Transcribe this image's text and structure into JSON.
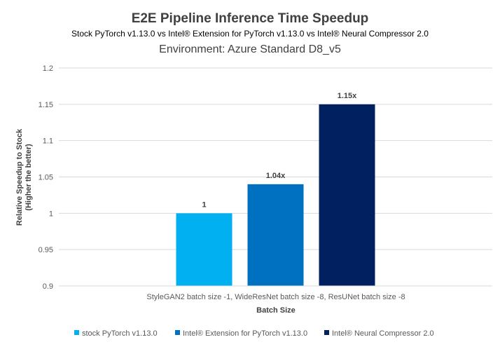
{
  "chart_data": {
    "type": "bar",
    "title": "E2E Pipeline Inference Time Speedup",
    "subtitle": "Stock PyTorch v1.13.0 vs Intel® Extension for PyTorch v1.13.0 vs Intel® Neural Compressor 2.0",
    "subtitle2": "Environment: Azure Standard D8_v5",
    "xlabel": "Batch Size",
    "ylabel_line1": "Relative Speedup to Stock",
    "ylabel_line2": "(Higher the better)",
    "ylim": [
      0.9,
      1.2
    ],
    "yticks": [
      "0.9",
      "0.95",
      "1",
      "1.05",
      "1.1",
      "1.15",
      "1.2"
    ],
    "ytick_values": [
      0.9,
      0.95,
      1.0,
      1.05,
      1.1,
      1.15,
      1.2
    ],
    "categories": [
      "StyleGAN2 batch size -1, WideResNet batch size -8, ResUNet batch size -8"
    ],
    "grid": true,
    "legend_position": "bottom",
    "series": [
      {
        "name": "stock PyTorch v1.13.0",
        "values": [
          1.0
        ],
        "label": "1",
        "color": "#00b0f0"
      },
      {
        "name": "Intel® Extension for PyTorch v1.13.0",
        "values": [
          1.04
        ],
        "label": "1.04x",
        "color": "#0070c0"
      },
      {
        "name": "Intel® Neural Compressor 2.0",
        "values": [
          1.15
        ],
        "label": "1.15x",
        "color": "#002060"
      }
    ]
  }
}
